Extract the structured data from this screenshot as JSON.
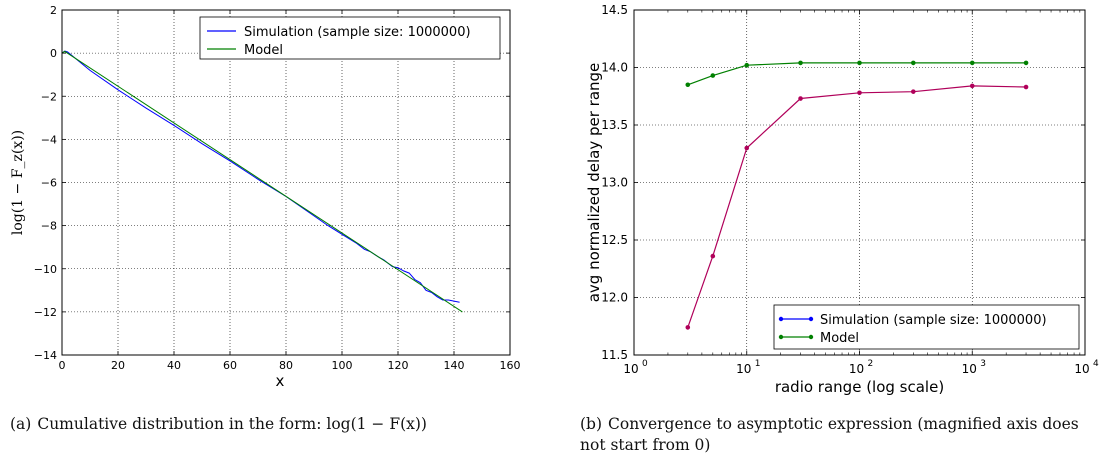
{
  "chart_data": [
    {
      "type": "line",
      "xlabel": "x",
      "ylabel": "log(1 − F_z(x))",
      "xlim": [
        0,
        160
      ],
      "ylim": [
        -14,
        2
      ],
      "xticks": [
        "0",
        "20",
        "40",
        "60",
        "80",
        "100",
        "120",
        "140",
        "160"
      ],
      "yticks": [
        "2",
        "0",
        "−2",
        "−4",
        "−6",
        "−8",
        "−10",
        "−12",
        "−14"
      ],
      "grid": true,
      "legend_position": "top-right",
      "series": [
        {
          "name": "Simulation (sample size: 1000000)",
          "color": "#0000ff",
          "x": [
            0,
            1,
            2,
            10,
            20,
            30,
            40,
            50,
            60,
            70,
            80,
            90,
            95,
            100,
            105,
            108,
            110,
            113,
            115,
            118,
            120,
            122,
            124,
            126,
            128,
            130,
            132,
            134,
            136,
            138,
            140,
            142
          ],
          "y": [
            0.0,
            0.1,
            0.05,
            -0.8,
            -1.7,
            -2.55,
            -3.35,
            -4.2,
            -5.0,
            -5.85,
            -6.65,
            -7.55,
            -8.0,
            -8.4,
            -8.8,
            -9.1,
            -9.2,
            -9.45,
            -9.6,
            -9.9,
            -9.95,
            -10.1,
            -10.2,
            -10.5,
            -10.65,
            -11.0,
            -11.1,
            -11.3,
            -11.45,
            -11.45,
            -11.5,
            -11.55
          ]
        },
        {
          "name": "Model",
          "color": "#008000",
          "x": [
            0,
            1,
            143
          ],
          "y": [
            0.0,
            0.08,
            -12.0
          ]
        }
      ]
    },
    {
      "type": "line",
      "xlabel": "radio range (log scale)",
      "ylabel": "avg normalized delay per range",
      "xscale": "log",
      "xlim": [
        1,
        10000
      ],
      "ylim": [
        11.5,
        14.5
      ],
      "xticks": [
        "10",
        "10",
        "10",
        "10",
        "10"
      ],
      "xtick_exponents": [
        "0",
        "1",
        "2",
        "3",
        "4"
      ],
      "yticks": [
        "14.5",
        "14.0",
        "13.5",
        "13.0",
        "12.5",
        "12.0",
        "11.5"
      ],
      "grid": true,
      "legend_position": "bottom-right",
      "series": [
        {
          "name": "Simulation (sample size: 1000000)",
          "color": "#0000ff",
          "x": [
            3,
            5,
            10,
            30,
            100,
            300,
            1000,
            3000
          ],
          "y": [
            11.74,
            12.36,
            13.3,
            13.73,
            13.78,
            13.79,
            13.84,
            13.83
          ]
        },
        {
          "name": "Model",
          "color": "#008000",
          "x": [
            3,
            5,
            10,
            30,
            100,
            300,
            1000,
            3000
          ],
          "y": [
            13.85,
            13.93,
            14.02,
            14.04,
            14.04,
            14.04,
            14.04,
            14.04
          ]
        }
      ]
    }
  ],
  "captions": {
    "a_prefix": "(a)",
    "a_text": "Cumulative distribution in the form: log(1 − F(x))",
    "b_prefix": "(b)",
    "b_text": "Convergence to asymptotic expression (magnified axis does not start from 0)"
  }
}
